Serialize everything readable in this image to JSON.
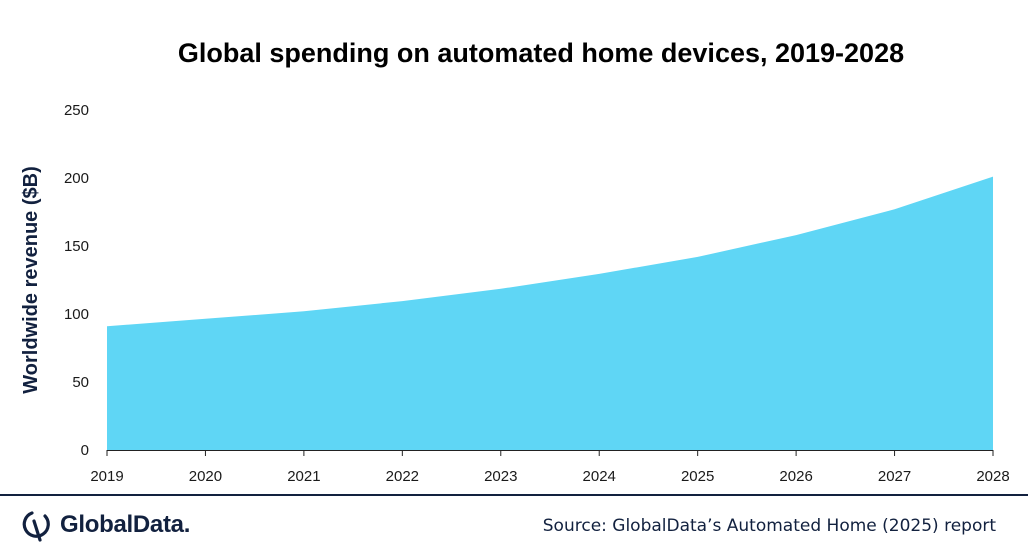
{
  "chart_data": {
    "type": "area",
    "title": "Global spending on automated home devices, 2019-2028",
    "ylabel": "Worldwide revenue ($B)",
    "xlabel": "",
    "x": [
      "2019",
      "2020",
      "2021",
      "2022",
      "2023",
      "2024",
      "2025",
      "2026",
      "2027",
      "2028"
    ],
    "values": [
      91,
      96.5,
      102,
      109.5,
      118.5,
      129.5,
      142,
      158,
      177,
      201
    ],
    "ylim": [
      0,
      250
    ],
    "yticks": [
      "0",
      "50",
      "100",
      "150",
      "200",
      "250"
    ],
    "grid": false,
    "legend": "none",
    "colors": {
      "area": "#5fd6f5",
      "axis": "#222222",
      "ylabel": "#12213f"
    }
  },
  "footer": {
    "logo_text": "GlobalData.",
    "logo_icon": "globaldata-logo-icon",
    "source": "Source: GlobalData’s Automated Home (2025) report"
  }
}
